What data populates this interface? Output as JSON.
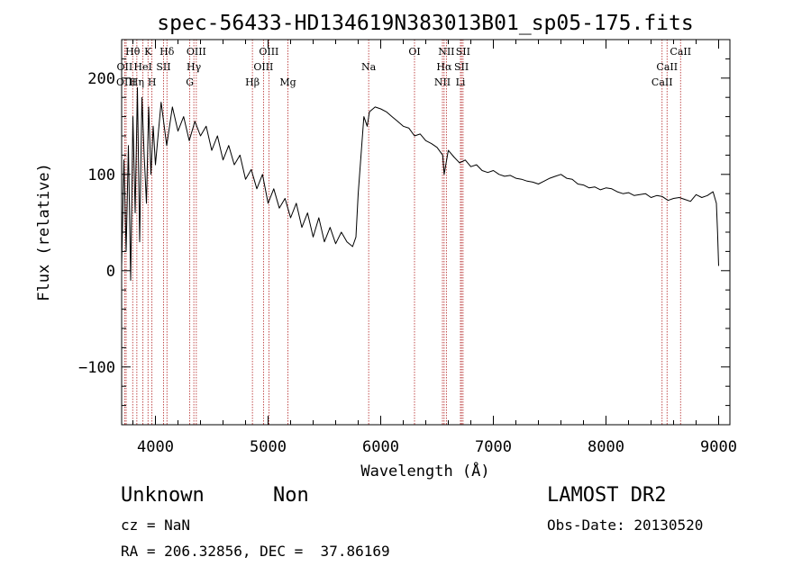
{
  "chart_data": {
    "type": "line",
    "title": "spec-56433-HD134619N383013B01_sp05-175.fits",
    "xlabel": "Wavelength (Å)",
    "ylabel": "Flux (relative)",
    "xlim": [
      3700,
      9100
    ],
    "ylim": [
      -160,
      240
    ],
    "x_ticks": [
      4000,
      5000,
      6000,
      7000,
      8000,
      9000
    ],
    "y_ticks": [
      -100,
      0,
      100,
      200
    ],
    "series": [
      {
        "x": [
          3700,
          3720,
          3740,
          3760,
          3780,
          3800,
          3820,
          3840,
          3860,
          3880,
          3900,
          3920,
          3940,
          3960,
          3980,
          4000,
          4050,
          4100,
          4150,
          4200,
          4250,
          4300,
          4350,
          4400,
          4450,
          4500,
          4550,
          4600,
          4650,
          4700,
          4750,
          4800,
          4850,
          4900,
          4950,
          5000,
          5050,
          5100,
          5150,
          5200,
          5250,
          5300,
          5350,
          5400,
          5450,
          5500,
          5550,
          5600,
          5650,
          5700,
          5750,
          5780,
          5800,
          5850,
          5880,
          5900,
          5950,
          6000,
          6050,
          6100,
          6150,
          6200,
          6250,
          6300,
          6350,
          6400,
          6450,
          6500,
          6550,
          6563,
          6600,
          6650,
          6700,
          6750,
          6800,
          6850,
          6900,
          6950,
          7000,
          7050,
          7100,
          7150,
          7200,
          7250,
          7300,
          7350,
          7400,
          7450,
          7500,
          7550,
          7600,
          7650,
          7700,
          7750,
          7800,
          7850,
          7900,
          7950,
          8000,
          8050,
          8100,
          8150,
          8200,
          8250,
          8300,
          8350,
          8400,
          8450,
          8500,
          8550,
          8600,
          8650,
          8700,
          8750,
          8800,
          8850,
          8900,
          8950,
          8980,
          8990,
          9000
        ],
        "y": [
          5,
          115,
          20,
          130,
          -10,
          160,
          60,
          190,
          30,
          180,
          120,
          70,
          170,
          100,
          150,
          110,
          175,
          130,
          170,
          145,
          160,
          135,
          155,
          140,
          150,
          125,
          140,
          115,
          130,
          110,
          120,
          95,
          105,
          85,
          100,
          70,
          85,
          65,
          75,
          55,
          70,
          45,
          60,
          35,
          55,
          30,
          45,
          28,
          40,
          30,
          25,
          35,
          80,
          160,
          150,
          165,
          170,
          168,
          165,
          160,
          155,
          150,
          148,
          140,
          142,
          135,
          132,
          128,
          120,
          100,
          125,
          118,
          112,
          115,
          108,
          110,
          104,
          102,
          104,
          100,
          98,
          99,
          96,
          95,
          93,
          92,
          90,
          93,
          96,
          98,
          100,
          96,
          95,
          90,
          89,
          86,
          87,
          84,
          86,
          85,
          82,
          80,
          81,
          78,
          79,
          80,
          76,
          78,
          77,
          73,
          75,
          76,
          74,
          72,
          79,
          76,
          78,
          82,
          70,
          40,
          5
        ]
      }
    ],
    "line_labels": [
      {
        "text": "Hθ",
        "wavelength": 3798,
        "row": 1
      },
      {
        "text": "K",
        "wavelength": 3934,
        "row": 1
      },
      {
        "text": "Hδ",
        "wavelength": 4102,
        "row": 1
      },
      {
        "text": "OIII",
        "wavelength": 4363,
        "row": 1
      },
      {
        "text": "OIII",
        "wavelength": 5007,
        "row": 1
      },
      {
        "text": "OI",
        "wavelength": 6300,
        "row": 1
      },
      {
        "text": "NII",
        "wavelength": 6583,
        "row": 1
      },
      {
        "text": "SII",
        "wavelength": 6731,
        "row": 1
      },
      {
        "text": "CaII",
        "wavelength": 8662,
        "row": 1
      },
      {
        "text": "OII",
        "wavelength": 3727,
        "row": 2
      },
      {
        "text": "HeI",
        "wavelength": 3889,
        "row": 2
      },
      {
        "text": "SII",
        "wavelength": 4072,
        "row": 2
      },
      {
        "text": "Hγ",
        "wavelength": 4341,
        "row": 2
      },
      {
        "text": "OIII",
        "wavelength": 4959,
        "row": 2
      },
      {
        "text": "Na",
        "wavelength": 5893,
        "row": 2
      },
      {
        "text": "Hα",
        "wavelength": 6563,
        "row": 2
      },
      {
        "text": "SII",
        "wavelength": 6717,
        "row": 2
      },
      {
        "text": "CaII",
        "wavelength": 8542,
        "row": 2
      },
      {
        "text": "OIII",
        "wavelength": 3740,
        "row": 3
      },
      {
        "text": "Hη",
        "wavelength": 3835,
        "row": 3
      },
      {
        "text": "H",
        "wavelength": 3969,
        "row": 3
      },
      {
        "text": "G",
        "wavelength": 4305,
        "row": 3
      },
      {
        "text": "Hβ",
        "wavelength": 4861,
        "row": 3
      },
      {
        "text": "Mg",
        "wavelength": 5176,
        "row": 3
      },
      {
        "text": "NII",
        "wavelength": 6548,
        "row": 3
      },
      {
        "text": "Li",
        "wavelength": 6708,
        "row": 3
      },
      {
        "text": "CaII",
        "wavelength": 8498,
        "row": 3
      }
    ],
    "line_markers": [
      3727,
      3740,
      3798,
      3835,
      3889,
      3934,
      3969,
      4072,
      4102,
      4305,
      4341,
      4363,
      4861,
      4959,
      5007,
      5176,
      5893,
      6300,
      6548,
      6563,
      6583,
      6708,
      6717,
      6731,
      8498,
      8542,
      8662
    ],
    "colors": {
      "spectrum": "#000000",
      "markers": "#b22222",
      "axes": "#000000"
    }
  },
  "info": {
    "object_class": "Unknown",
    "subclass": "Non",
    "survey": "LAMOST DR2",
    "cz": "cz = NaN",
    "obs_date": "Obs-Date: 20130520",
    "coords": "RA = 206.32856, DEC =  37.86169"
  }
}
